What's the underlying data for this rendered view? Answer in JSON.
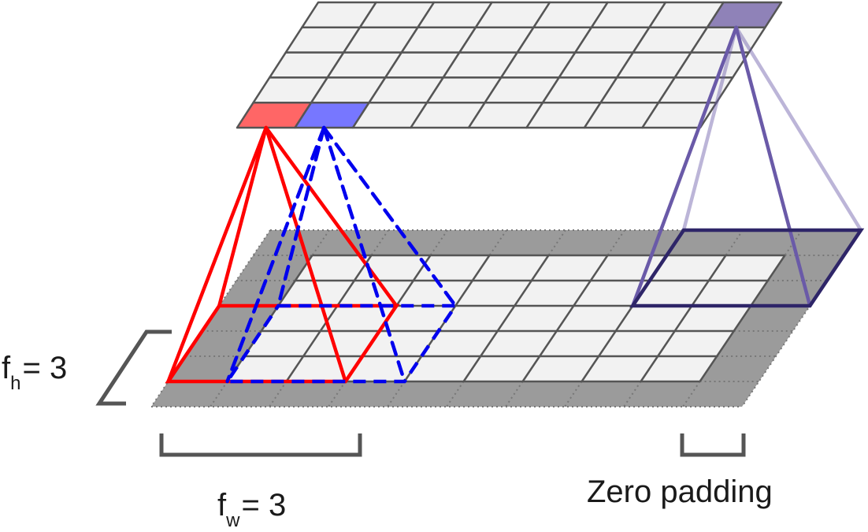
{
  "labels": {
    "filter_height": {
      "main": "f",
      "sub": "h",
      "rest": "= 3"
    },
    "filter_width": {
      "main": "f",
      "sub": "w",
      "rest": "= 3"
    },
    "zero_padding": "Zero padding"
  },
  "colors": {
    "cell_fill": "#f2f2f2",
    "cell_line": "#555555",
    "padding_fill": "#9b9b9b",
    "padding_line": "#777777",
    "red_receptive_field": "#ff0000",
    "red_output_cell": "#ff6666",
    "blue_receptive_field": "#0000ee",
    "blue_output_cell": "#7777ff",
    "purple_receptive_field": "#6a5aa8",
    "purple_receptive_field_dark": "#2e2568",
    "purple_output_cell": "#8f82b8",
    "bracket": "#555555"
  },
  "grids": {
    "output_layer": {
      "rows": 5,
      "cols": 8
    },
    "input_layer": {
      "rows": 5,
      "cols": 8,
      "padding": 1
    }
  },
  "receptive_fields": [
    {
      "name": "red",
      "style": "solid",
      "output_cell": {
        "row": 4,
        "col": 0
      },
      "input_rows": [
        2,
        4
      ],
      "input_cols": [
        -1,
        1
      ]
    },
    {
      "name": "blue",
      "style": "dashed",
      "output_cell": {
        "row": 4,
        "col": 1
      },
      "input_rows": [
        2,
        4
      ],
      "input_cols": [
        0,
        2
      ]
    },
    {
      "name": "purple",
      "style": "solid",
      "output_cell": {
        "row": 0,
        "col": 7
      },
      "input_rows": [
        -1,
        1
      ],
      "input_cols": [
        6,
        8
      ]
    }
  ]
}
